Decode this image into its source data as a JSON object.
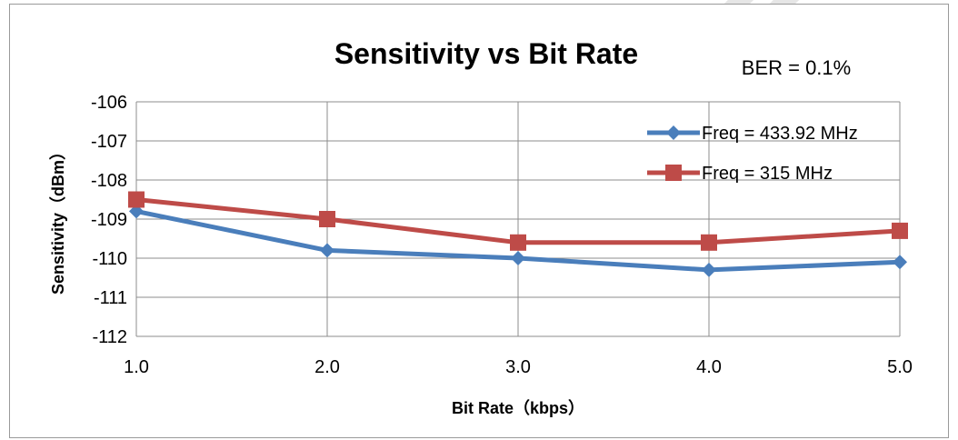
{
  "chart_data": {
    "type": "line",
    "title": "Sensitivity vs Bit Rate",
    "annotation": "BER = 0.1%",
    "xlabel": "Bit Rate（kbps）",
    "ylabel": "Sensitivity（dBm）",
    "x": [
      1.0,
      2.0,
      3.0,
      4.0,
      5.0
    ],
    "x_tick_labels": [
      "1.0",
      "2.0",
      "3.0",
      "4.0",
      "5.0"
    ],
    "xlim": [
      1.0,
      5.0
    ],
    "ylim": [
      -112,
      -106
    ],
    "y_ticks": [
      -106,
      -107,
      -108,
      -109,
      -110,
      -111,
      -112
    ],
    "grid": true,
    "legend_position": "top-right",
    "series": [
      {
        "name": "Freq = 433.92 MHz",
        "color": "#4a7ebb",
        "marker": "diamond",
        "values": [
          -108.8,
          -109.8,
          -110.0,
          -110.3,
          -110.1
        ]
      },
      {
        "name": "Freq = 315 MHz",
        "color": "#be4b48",
        "marker": "square",
        "values": [
          -108.5,
          -109.0,
          -109.6,
          -109.6,
          -109.3
        ]
      }
    ]
  }
}
